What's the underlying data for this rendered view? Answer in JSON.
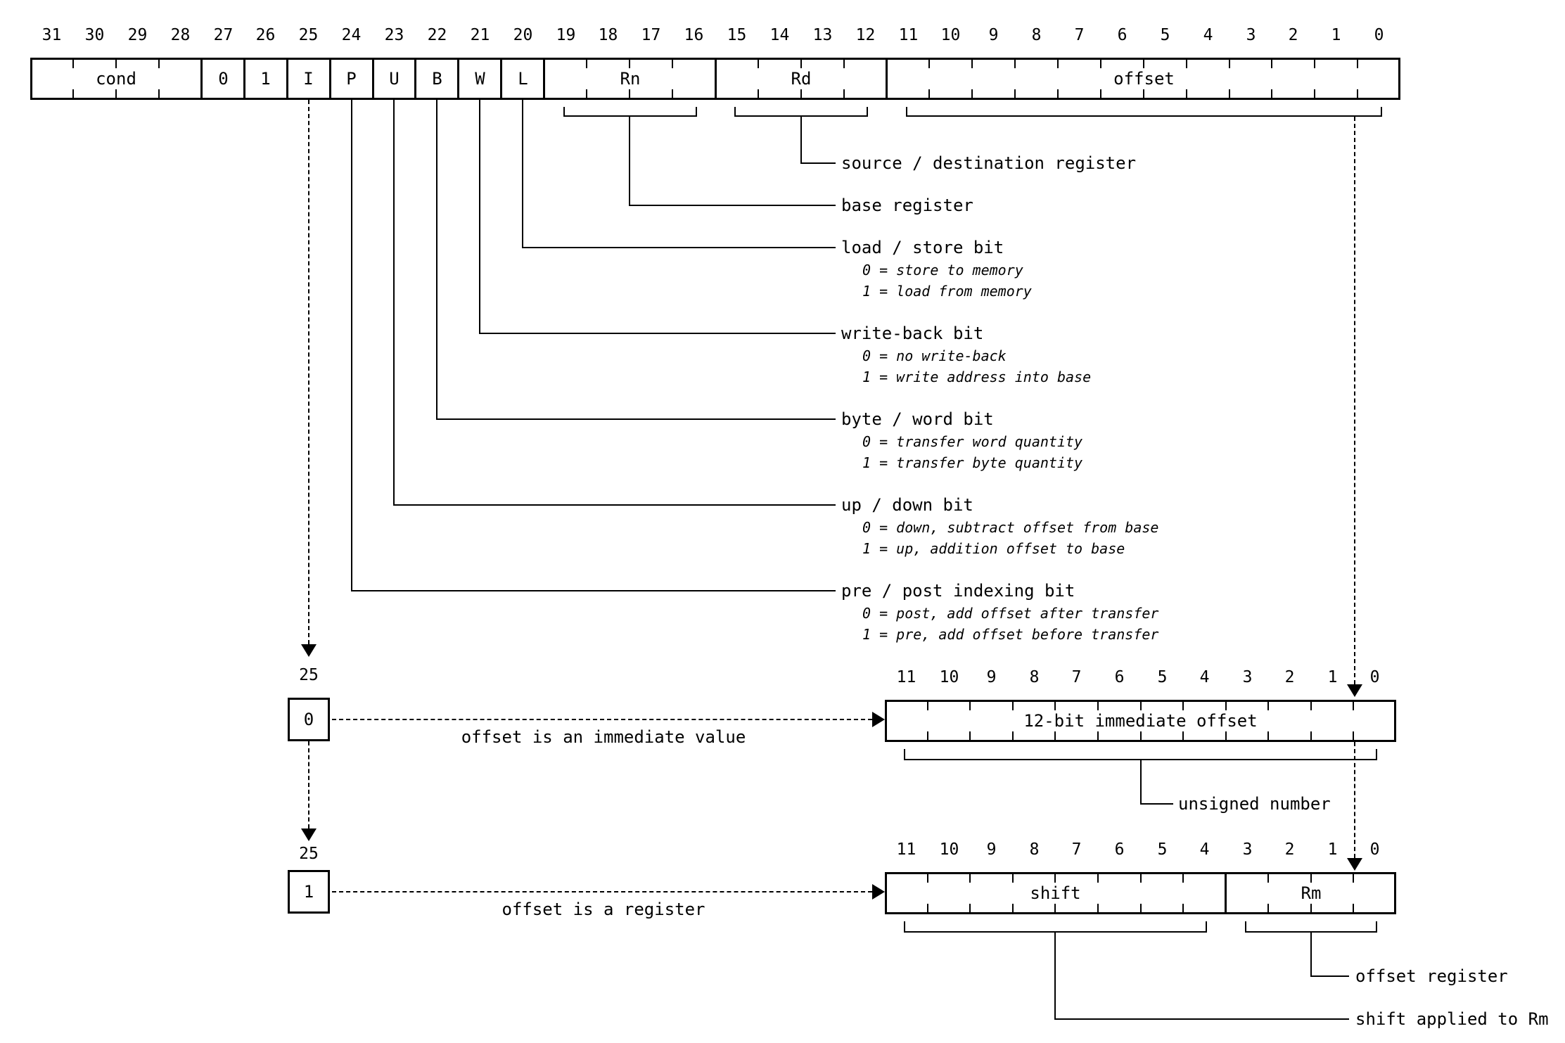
{
  "colors": {
    "line": "#000000",
    "background": "#ffffff"
  },
  "main_register": {
    "bit_numbers": [
      "31",
      "30",
      "29",
      "28",
      "27",
      "26",
      "25",
      "24",
      "23",
      "22",
      "21",
      "20",
      "19",
      "18",
      "17",
      "16",
      "15",
      "14",
      "13",
      "12",
      "11",
      "10",
      "9",
      "8",
      "7",
      "6",
      "5",
      "4",
      "3",
      "2",
      "1",
      "0"
    ],
    "fields": [
      {
        "name": "cond",
        "label": "cond",
        "msb": 31,
        "lsb": 28
      },
      {
        "name": "const0",
        "label": "0",
        "msb": 27,
        "lsb": 27
      },
      {
        "name": "const1",
        "label": "1",
        "msb": 26,
        "lsb": 26
      },
      {
        "name": "I",
        "label": "I",
        "msb": 25,
        "lsb": 25
      },
      {
        "name": "P",
        "label": "P",
        "msb": 24,
        "lsb": 24
      },
      {
        "name": "U",
        "label": "U",
        "msb": 23,
        "lsb": 23
      },
      {
        "name": "B",
        "label": "B",
        "msb": 22,
        "lsb": 22
      },
      {
        "name": "W",
        "label": "W",
        "msb": 21,
        "lsb": 21
      },
      {
        "name": "L",
        "label": "L",
        "msb": 20,
        "lsb": 20
      },
      {
        "name": "Rn",
        "label": "Rn",
        "msb": 19,
        "lsb": 16
      },
      {
        "name": "Rd",
        "label": "Rd",
        "msb": 15,
        "lsb": 12
      },
      {
        "name": "offset",
        "label": "offset",
        "msb": 11,
        "lsb": 0
      }
    ]
  },
  "annotations": [
    {
      "field": "Rd",
      "label": "source / destination register",
      "sublines": []
    },
    {
      "field": "Rn",
      "label": "base register",
      "sublines": []
    },
    {
      "field": "L",
      "label": "load / store bit",
      "sublines": [
        "0 = store to memory",
        "1 = load from memory"
      ]
    },
    {
      "field": "W",
      "label": "write-back bit",
      "sublines": [
        "0 = no write-back",
        "1 = write address into base"
      ]
    },
    {
      "field": "B",
      "label": "byte / word bit",
      "sublines": [
        "0 = transfer word quantity",
        "1 = transfer byte quantity"
      ]
    },
    {
      "field": "U",
      "label": "up / down bit",
      "sublines": [
        "0 = down, subtract offset from base",
        "1 = up, addition offset to base"
      ]
    },
    {
      "field": "P",
      "label": "pre / post indexing bit",
      "sublines": [
        "0 = post, add offset after transfer",
        "1 = pre, add offset before transfer"
      ]
    }
  ],
  "variants": [
    {
      "name": "immediate",
      "bit_position_label": "25",
      "bit_value": "0",
      "description": "offset is an immediate value",
      "box": {
        "bit_numbers": [
          "11",
          "10",
          "9",
          "8",
          "7",
          "6",
          "5",
          "4",
          "3",
          "2",
          "1",
          "0"
        ],
        "fields": [
          {
            "name": "imm12",
            "label": "12-bit immediate offset",
            "msb": 11,
            "lsb": 0
          }
        ]
      },
      "callouts": [
        {
          "field": "imm12",
          "label": "unsigned number"
        }
      ]
    },
    {
      "name": "register",
      "bit_position_label": "25",
      "bit_value": "1",
      "description": "offset is a register",
      "box": {
        "bit_numbers": [
          "11",
          "10",
          "9",
          "8",
          "7",
          "6",
          "5",
          "4",
          "3",
          "2",
          "1",
          "0"
        ],
        "fields": [
          {
            "name": "shift",
            "label": "shift",
            "msb": 11,
            "lsb": 4
          },
          {
            "name": "Rm",
            "label": "Rm",
            "msb": 3,
            "lsb": 0
          }
        ]
      },
      "callouts": [
        {
          "field": "Rm",
          "label": "offset register"
        },
        {
          "field": "shift",
          "label": "shift applied to Rm"
        }
      ]
    }
  ]
}
